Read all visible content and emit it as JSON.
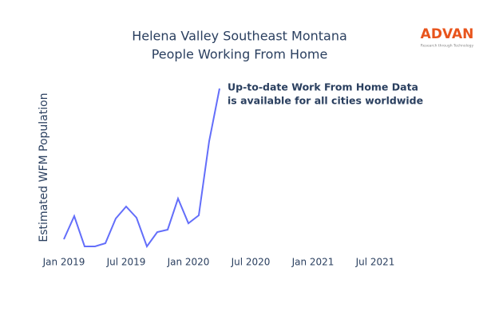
{
  "chart_data": {
    "type": "line",
    "title": [
      "Helena Valley Southeast Montana",
      "People Working From Home"
    ],
    "y_label": "Estimated WFM Population",
    "annotation": [
      "Up-to-date Work From Home Data",
      "is available for all cities worldwide"
    ],
    "logo": {
      "name": "ADVAN",
      "tagline": "Research through Technology"
    },
    "x": [
      "2019-01",
      "2019-02",
      "2019-03",
      "2019-04",
      "2019-05",
      "2019-06",
      "2019-07",
      "2019-08",
      "2019-09",
      "2019-10",
      "2019-11",
      "2019-12",
      "2020-01",
      "2020-02",
      "2020-03",
      "2020-04"
    ],
    "series": [
      {
        "color": "#636efa",
        "values": [
          20,
          49,
          11,
          11,
          15,
          46,
          61,
          47,
          11,
          29,
          32,
          71,
          40,
          50,
          143,
          209
        ]
      }
    ],
    "xlim": [
      "2018-11",
      "2021-11"
    ],
    "xticks": [
      {
        "value": "2019-01",
        "label": "Jan 2019"
      },
      {
        "value": "2019-07",
        "label": "Jul 2019"
      },
      {
        "value": "2020-01",
        "label": "Jan 2020"
      },
      {
        "value": "2020-07",
        "label": "Jul 2020"
      },
      {
        "value": "2021-01",
        "label": "Jan 2021"
      },
      {
        "value": "2021-07",
        "label": "Jul 2021"
      }
    ],
    "ylim": [
      0,
      220
    ],
    "grid": false
  }
}
